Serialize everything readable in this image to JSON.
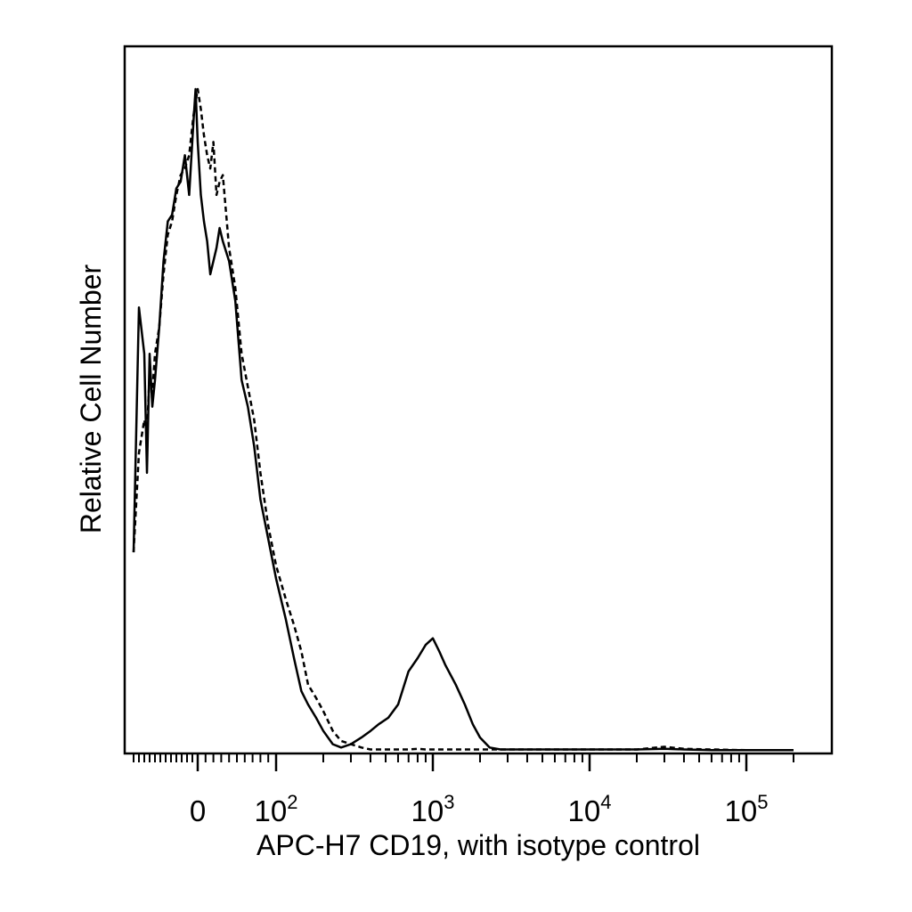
{
  "chart_data": {
    "type": "line",
    "title": "",
    "xlabel": "APC-H7 CD19, with isotype control",
    "ylabel": "Relative Cell Number",
    "x_scale": "biexponential",
    "x_tick_labels": [
      {
        "value": 0,
        "base": "0",
        "exp": ""
      },
      {
        "value": 100,
        "base": "10",
        "exp": "2"
      },
      {
        "value": 1000,
        "base": "10",
        "exp": "3"
      },
      {
        "value": 10000,
        "base": "10",
        "exp": "4"
      },
      {
        "value": 100000,
        "base": "10",
        "exp": "5"
      }
    ],
    "grid": false,
    "legend": "none",
    "colors": {
      "line": "#000000",
      "frame": "#000000",
      "background": "#ffffff"
    },
    "series": [
      {
        "style": "solid",
        "x": [
          -120,
          -110,
          -100,
          -95,
          -90,
          -85,
          -80,
          -72,
          -64,
          -56,
          -48,
          -40,
          -32,
          -24,
          -16,
          -8,
          -4,
          0,
          4,
          8,
          12,
          16,
          20,
          24,
          28,
          32,
          40,
          48,
          56,
          64,
          72,
          80,
          90,
          100,
          115,
          130,
          145,
          160,
          180,
          200,
          230,
          260,
          300,
          350,
          400,
          450,
          520,
          600,
          700,
          800,
          900,
          1000,
          1100,
          1200,
          1400,
          1600,
          1800,
          2000,
          2300,
          2700,
          3500,
          5000,
          8000,
          12000,
          20000,
          30000,
          40000,
          60000,
          100000,
          200000
        ],
        "y": [
          0.3,
          0.67,
          0.6,
          0.42,
          0.6,
          0.52,
          0.56,
          0.64,
          0.74,
          0.8,
          0.81,
          0.85,
          0.86,
          0.9,
          0.84,
          0.95,
          1.0,
          0.92,
          0.84,
          0.8,
          0.77,
          0.72,
          0.74,
          0.76,
          0.79,
          0.77,
          0.74,
          0.68,
          0.56,
          0.52,
          0.46,
          0.38,
          0.32,
          0.26,
          0.2,
          0.14,
          0.09,
          0.07,
          0.05,
          0.03,
          0.01,
          0.005,
          0.01,
          0.02,
          0.03,
          0.04,
          0.05,
          0.07,
          0.12,
          0.14,
          0.16,
          0.17,
          0.15,
          0.13,
          0.1,
          0.07,
          0.04,
          0.02,
          0.005,
          0.002,
          0.002,
          0.002,
          0.002,
          0.002,
          0.002,
          0.003,
          0.002,
          0.001,
          0.001,
          0.001
        ]
      },
      {
        "style": "dashed",
        "x": [
          -120,
          -110,
          -100,
          -95,
          -90,
          -85,
          -80,
          -72,
          -64,
          -56,
          -48,
          -40,
          -32,
          -24,
          -16,
          -8,
          -4,
          0,
          4,
          8,
          12,
          16,
          20,
          24,
          28,
          32,
          40,
          48,
          56,
          64,
          72,
          80,
          90,
          100,
          115,
          130,
          145,
          160,
          180,
          200,
          230,
          260,
          300,
          350,
          400,
          450,
          520,
          600,
          700,
          800,
          900,
          1000,
          1100,
          1200,
          1400,
          1600,
          1800,
          2000,
          2300,
          2700,
          3500,
          5000,
          8000,
          12000,
          20000,
          30000,
          40000,
          60000,
          100000,
          200000
        ],
        "y": [
          0.3,
          0.45,
          0.5,
          0.48,
          0.57,
          0.54,
          0.6,
          0.64,
          0.72,
          0.78,
          0.8,
          0.84,
          0.87,
          0.88,
          0.9,
          0.96,
          0.98,
          1.0,
          0.97,
          0.93,
          0.9,
          0.88,
          0.92,
          0.84,
          0.86,
          0.87,
          0.76,
          0.7,
          0.6,
          0.55,
          0.5,
          0.42,
          0.34,
          0.28,
          0.23,
          0.19,
          0.15,
          0.1,
          0.08,
          0.06,
          0.03,
          0.015,
          0.01,
          0.005,
          0.002,
          0.002,
          0.002,
          0.002,
          0.002,
          0.003,
          0.002,
          0.002,
          0.002,
          0.002,
          0.002,
          0.002,
          0.002,
          0.002,
          0.002,
          0.002,
          0.002,
          0.002,
          0.002,
          0.002,
          0.002,
          0.006,
          0.003,
          0.002,
          0.001,
          0.001
        ]
      }
    ]
  }
}
